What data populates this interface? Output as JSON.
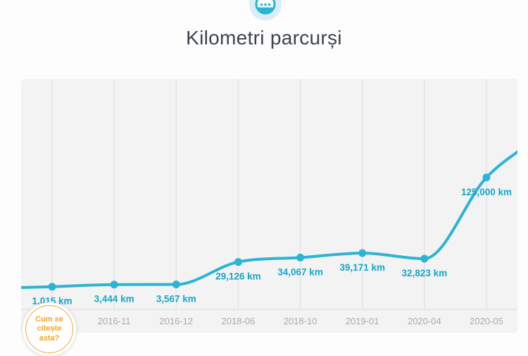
{
  "header": {
    "title": "Kilometri parcurși",
    "icon": "odometer-icon",
    "icon_bg_color": "#d9eef6",
    "icon_color": "#2ab4d5"
  },
  "chart_data": {
    "type": "line",
    "title": "Kilometri parcurși",
    "unit": "km",
    "categories": [
      "",
      "2016-11",
      "2016-12",
      "2018-06",
      "2018-10",
      "2019-01",
      "2020-04",
      "2020-05"
    ],
    "values": [
      1015,
      3444,
      3567,
      29126,
      34067,
      39171,
      32823,
      125000
    ],
    "value_labels": [
      "1,015 km",
      "3,444 km",
      "3,567 km",
      "29,126 km",
      "34,067 km",
      "39,171 km",
      "32,823 km",
      "125,000 km"
    ],
    "ylim": [
      0,
      235000
    ],
    "xlabel": "",
    "ylabel": "",
    "legend": "none",
    "grid": "vertical-only",
    "line_color": "#2bb4d6",
    "point_color": "#2bb4d6",
    "value_label_color": "#17a5cc",
    "axis_label_color": "#ababad",
    "plot_bg_color": "#f3f3f4",
    "gridline_color": "#e5e5e7",
    "axis_line_color": "#dcdcde"
  },
  "help_badge": {
    "lines": [
      "Cum se",
      "citește",
      "asta?"
    ],
    "text_color": "#f5a623",
    "ring_color": "#f0a638"
  }
}
